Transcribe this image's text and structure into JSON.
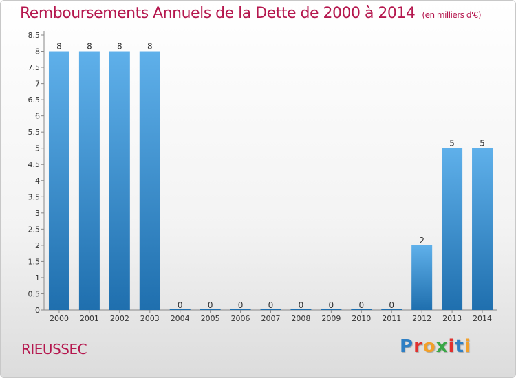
{
  "title": "Remboursements Annuels de la Dette de 2000 à 2014",
  "unit_label": "(en milliers d'€)",
  "commune": "RIEUSSEC",
  "logo": {
    "text": "Proxiti",
    "colors": [
      "#2e7fc4",
      "#e0312f",
      "#f2a02a",
      "#3aa847",
      "#e0312f",
      "#2e7fc4",
      "#f2a02a"
    ]
  },
  "colors": {
    "bar_top": "#5fb0ea",
    "bar_bottom": "#1f6fae",
    "title": "#b5174e"
  },
  "chart_data": {
    "type": "bar",
    "categories": [
      "2000",
      "2001",
      "2002",
      "2003",
      "2004",
      "2005",
      "2006",
      "2007",
      "2008",
      "2009",
      "2010",
      "2011",
      "2012",
      "2013",
      "2014"
    ],
    "values": [
      8,
      8,
      8,
      8,
      0,
      0,
      0,
      0,
      0,
      0,
      0,
      0,
      2,
      5,
      5
    ],
    "data_labels": [
      "8",
      "8",
      "8",
      "8",
      "0",
      "0",
      "0",
      "0",
      "0",
      "0",
      "0",
      "0",
      "2",
      "5",
      "5"
    ],
    "y_ticks": [
      "0",
      "0.5",
      "1",
      "1.5",
      "2",
      "2.5",
      "3",
      "3.5",
      "4",
      "4.5",
      "5",
      "5.5",
      "6",
      "6.5",
      "7",
      "7.5",
      "8",
      "8.5"
    ],
    "ylim": [
      0,
      8.5
    ],
    "grid": false
  }
}
